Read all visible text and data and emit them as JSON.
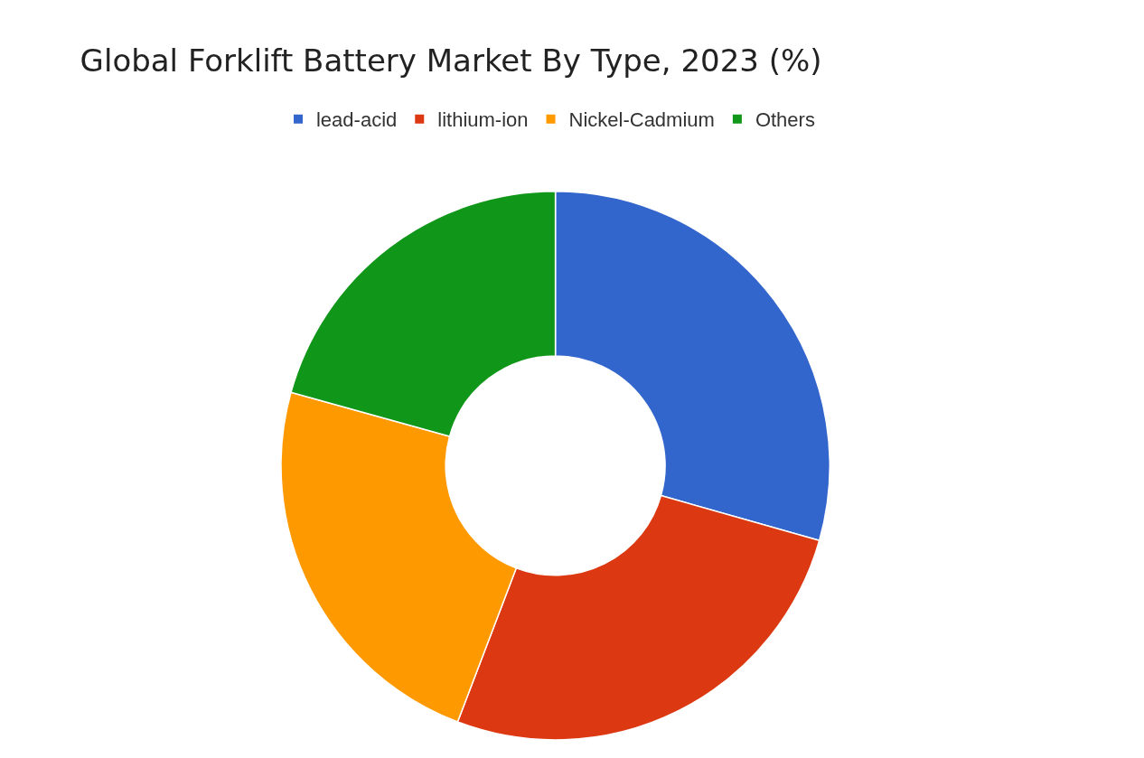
{
  "chart_data": {
    "type": "donut",
    "title": "Global Forklift Battery Market By Type, 2023 (%)",
    "categories": [
      "lead-acid",
      "lithium-ion",
      "Nickel-Cadmium",
      "Others"
    ],
    "values": [
      29.4,
      26.4,
      23.5,
      20.7
    ],
    "colors": [
      "#3366cc",
      "#dc3912",
      "#ff9900",
      "#109618"
    ],
    "legend": "top"
  }
}
